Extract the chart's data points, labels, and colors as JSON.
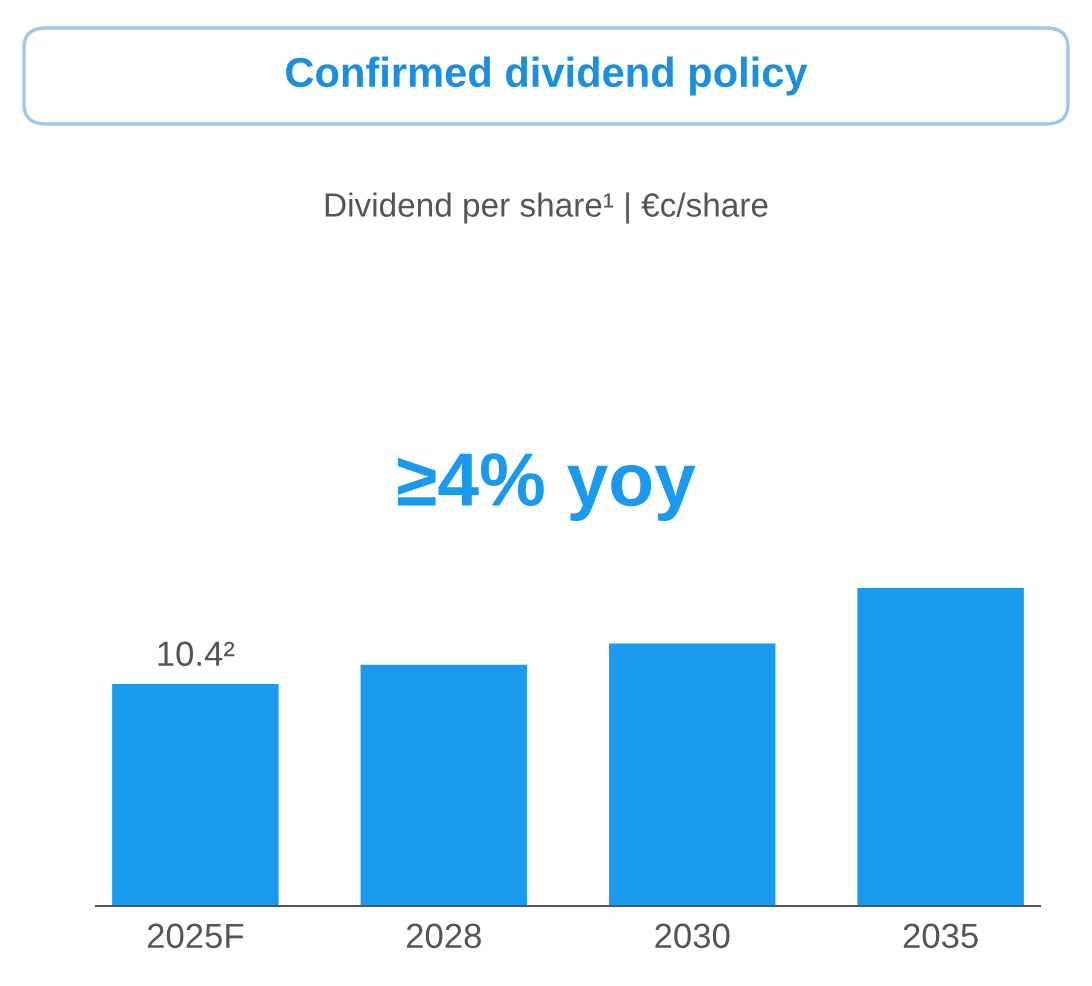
{
  "chart_data": {
    "type": "bar",
    "title": "Confirmed dividend policy",
    "subtitle": "Dividend per share¹ | €c/share",
    "annotations": [
      "≥4% yoy"
    ],
    "categories": [
      "2025F",
      "2028",
      "2030",
      "2035"
    ],
    "values": [
      10.4,
      11.3,
      12.3,
      14.9
    ],
    "value_labels": [
      "10.4²",
      null,
      null,
      null
    ],
    "color": "#1a9aee",
    "grid": false,
    "legend": false
  }
}
